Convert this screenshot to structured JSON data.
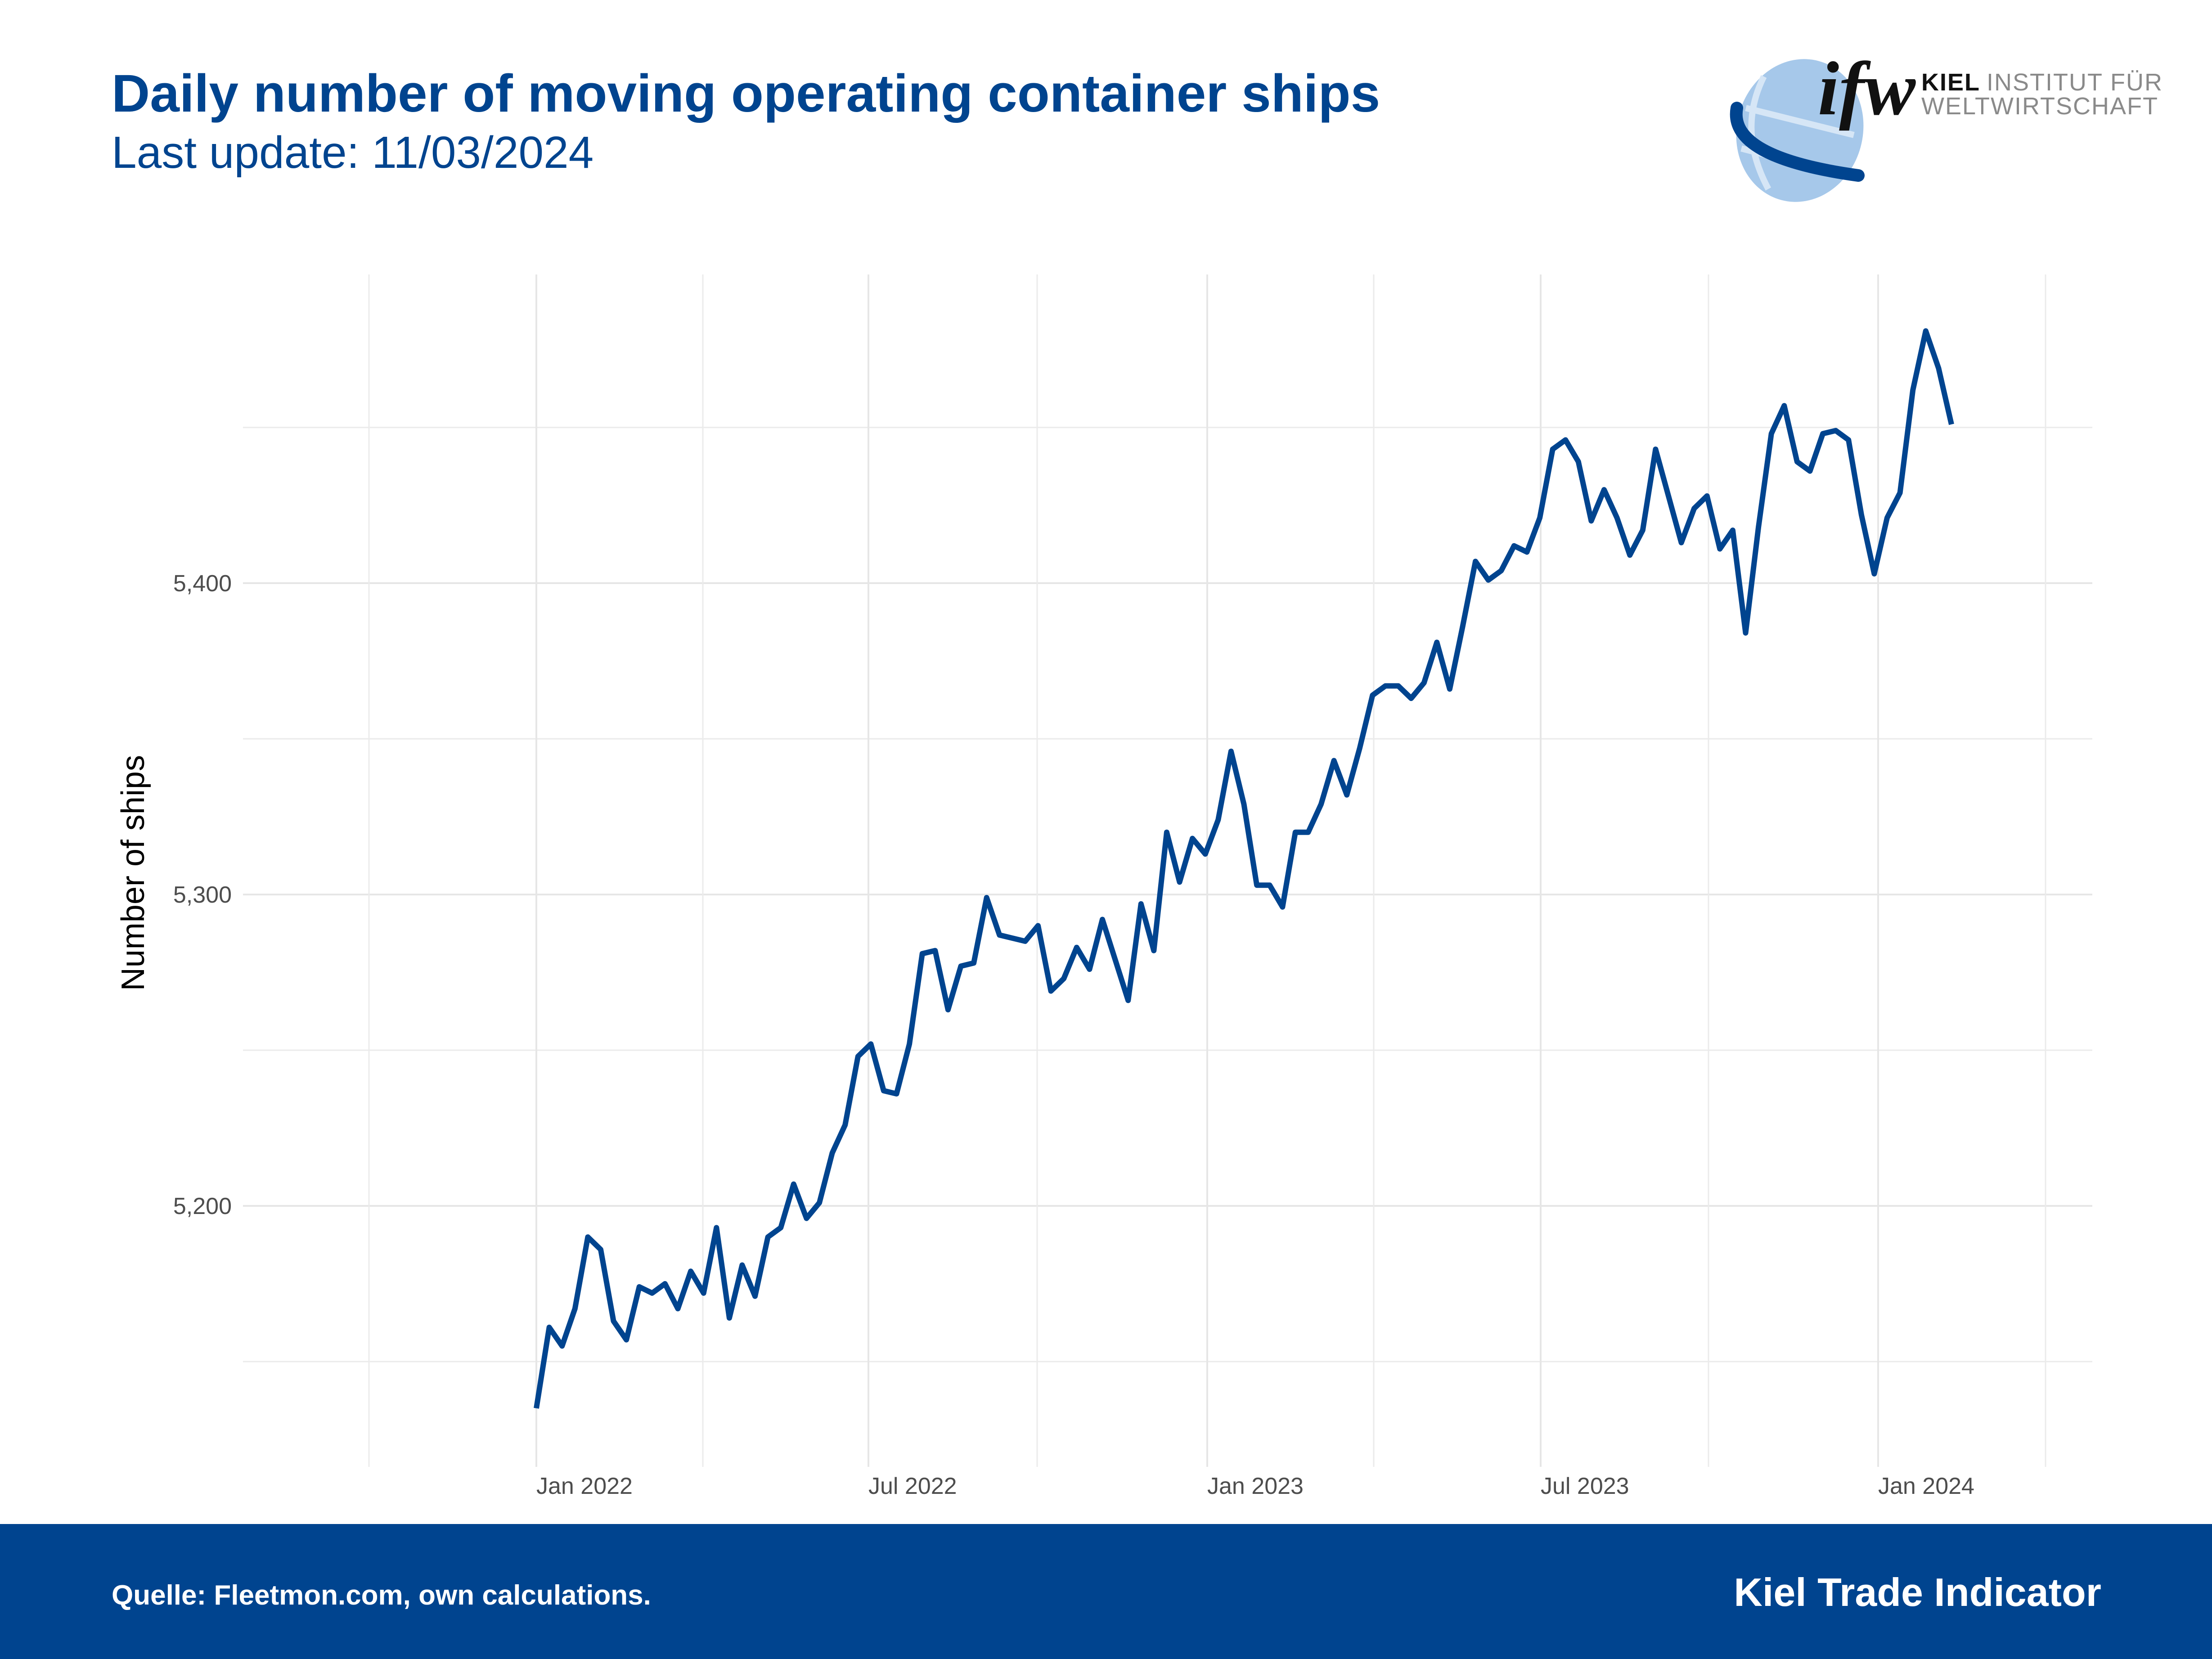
{
  "header": {
    "title": "Daily number of moving operating container ships",
    "subtitle": "Last update: 11/03/2024"
  },
  "logo": {
    "mark": "ifw",
    "line1_bold": "KIEL",
    "line1_rest": "INSTITUT FÜR",
    "line2": "WELTWIRTSCHAFT",
    "icon": "globe-logo-icon"
  },
  "footer": {
    "source": "Quelle: Fleetmon.com, own calculations.",
    "brand": "Kiel Trade Indicator",
    "background_color": "#00448f"
  },
  "chart_data": {
    "type": "line",
    "title": "Daily number of moving operating container ships",
    "subtitle": "Last update: 11/03/2024",
    "xlabel": "",
    "ylabel": "Number of ships",
    "x_tick_labels": [
      "Jan 2022",
      "Jul 2022",
      "Jan 2023",
      "Jul 2023",
      "Jan 2024"
    ],
    "x_range": [
      "2021-07",
      "2024-04"
    ],
    "y_tick_labels": [
      "5,200",
      "5,300",
      "5,400"
    ],
    "y_ticks": [
      5200,
      5300,
      5400
    ],
    "y_minor_ticks": [
      5150,
      5250,
      5350,
      5450
    ],
    "ylim": [
      5120,
      5495
    ],
    "grid": true,
    "legend": "none",
    "line_color": "#00448f",
    "x_start": "2022-01",
    "x_step": "weekly",
    "series": [
      {
        "name": "Number of ships",
        "values": [
          5135,
          5161,
          5155,
          5167,
          5190,
          5186,
          5163,
          5157,
          5174,
          5172,
          5175,
          5167,
          5179,
          5172,
          5193,
          5164,
          5181,
          5171,
          5190,
          5193,
          5207,
          5196,
          5201,
          5217,
          5226,
          5248,
          5252,
          5237,
          5236,
          5252,
          5281,
          5282,
          5263,
          5277,
          5278,
          5299,
          5287,
          5286,
          5285,
          5290,
          5269,
          5273,
          5283,
          5276,
          5292,
          5279,
          5266,
          5297,
          5282,
          5320,
          5304,
          5318,
          5313,
          5324,
          5346,
          5329,
          5303,
          5303,
          5296,
          5320,
          5320,
          5329,
          5343,
          5332,
          5347,
          5364,
          5367,
          5367,
          5363,
          5368,
          5381,
          5366,
          5386,
          5407,
          5401,
          5404,
          5412,
          5410,
          5421,
          5443,
          5446,
          5439,
          5420,
          5430,
          5421,
          5409,
          5417,
          5443,
          5428,
          5413,
          5424,
          5428,
          5411,
          5417,
          5384,
          5418,
          5448,
          5457,
          5439,
          5436,
          5448,
          5449,
          5446,
          5422,
          5403,
          5421,
          5429,
          5462,
          5481,
          5469,
          5451
        ]
      }
    ]
  }
}
